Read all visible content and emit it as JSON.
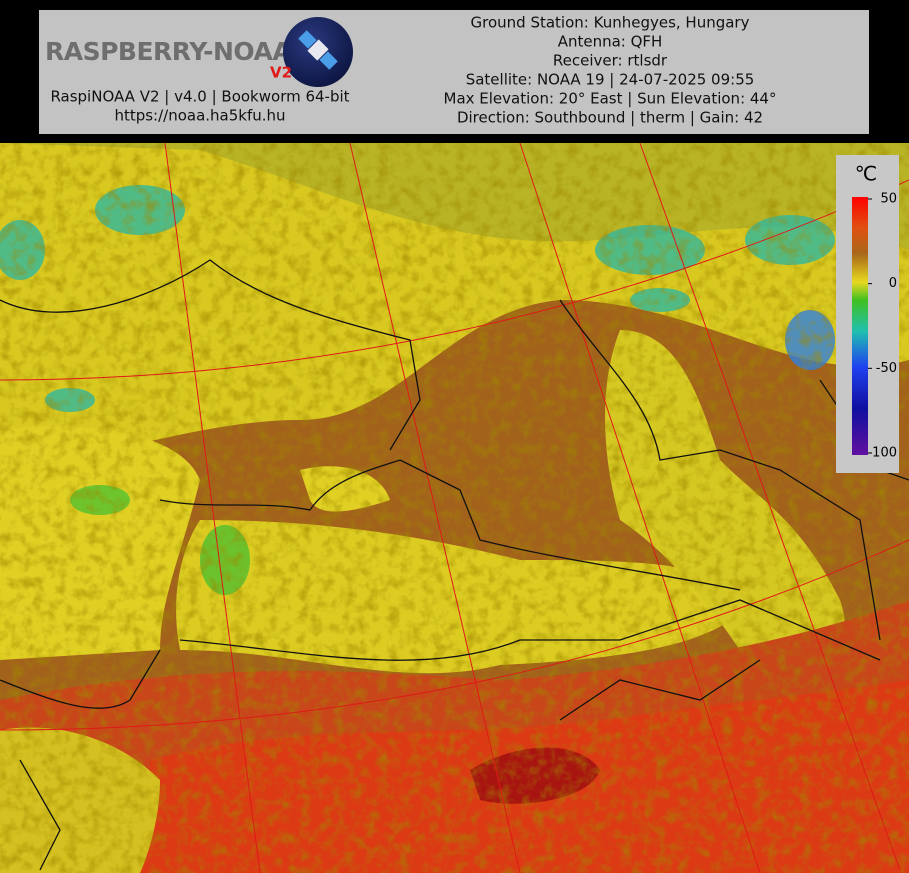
{
  "header": {
    "logo": {
      "text": "RASPBERRY-NOAA",
      "version": "V2"
    },
    "left": [
      "RaspiNOAA V2 | v4.0 | Bookworm 64-bit",
      "https://noaa.ha5kfu.hu"
    ],
    "right": [
      "Ground Station: Kunhegyes, Hungary",
      "Antenna: QFH",
      "Receiver: rtlsdr",
      "Satellite: NOAA 19 | 24-07-2025 09:55",
      "Max Elevation: 20° East | Sun Elevation: 44°",
      "Direction: Southbound | therm | Gain: 42"
    ]
  },
  "legend": {
    "unit": "℃",
    "range": [
      -100,
      50
    ],
    "ticks": [
      50,
      0,
      -50,
      -100
    ]
  }
}
